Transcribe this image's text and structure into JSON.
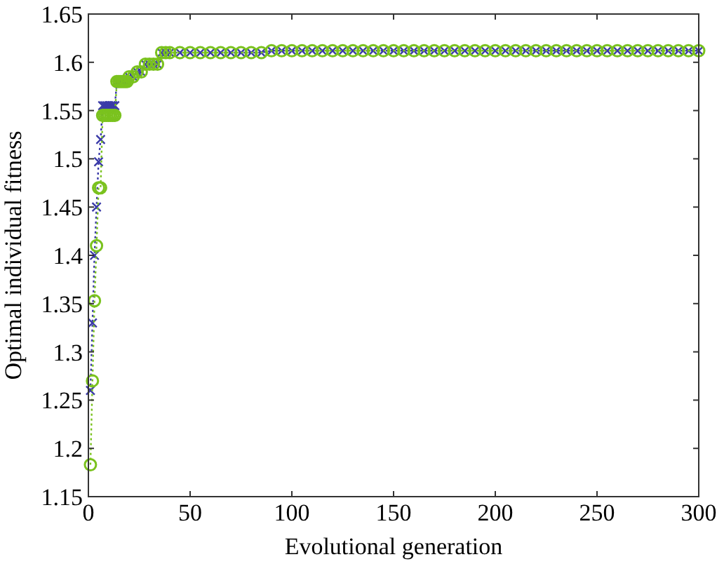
{
  "chart_data": {
    "type": "line",
    "xlabel": "Evolutional generation",
    "ylabel": "Optimal individual fitness",
    "xlim": [
      0,
      300
    ],
    "ylim": [
      1.15,
      1.65
    ],
    "xticks": [
      0,
      50,
      100,
      150,
      200,
      250,
      300
    ],
    "yticks": [
      1.15,
      1.2,
      1.25,
      1.3,
      1.35,
      1.4,
      1.45,
      1.5,
      1.55,
      1.6,
      1.65
    ],
    "grid": false,
    "line_style": "dotted",
    "x": [
      1,
      2,
      3,
      4,
      5,
      6,
      7,
      8,
      9,
      10,
      11,
      12,
      13,
      14,
      15,
      16,
      17,
      18,
      19,
      20,
      22,
      24,
      26,
      28,
      30,
      32,
      34,
      36,
      38,
      40,
      45,
      50,
      55,
      60,
      65,
      70,
      75,
      80,
      85,
      90,
      95,
      100,
      105,
      110,
      115,
      120,
      125,
      130,
      135,
      140,
      145,
      150,
      155,
      160,
      165,
      170,
      175,
      180,
      185,
      190,
      195,
      200,
      205,
      210,
      215,
      220,
      225,
      230,
      235,
      240,
      245,
      250,
      255,
      260,
      265,
      270,
      275,
      280,
      285,
      290,
      295,
      300
    ],
    "series": [
      {
        "color": "#3a3aa8",
        "marker": "cross",
        "values": [
          1.26,
          1.33,
          1.4,
          1.45,
          1.497,
          1.52,
          1.555,
          1.555,
          1.555,
          1.555,
          1.555,
          1.555,
          1.555,
          1.58,
          1.58,
          1.58,
          1.58,
          1.58,
          1.58,
          1.585,
          1.585,
          1.59,
          1.59,
          1.598,
          1.598,
          1.598,
          1.598,
          1.61,
          1.61,
          1.61,
          1.61,
          1.61,
          1.61,
          1.61,
          1.61,
          1.61,
          1.61,
          1.61,
          1.61,
          1.612,
          1.612,
          1.612,
          1.612,
          1.612,
          1.612,
          1.612,
          1.612,
          1.612,
          1.612,
          1.612,
          1.612,
          1.612,
          1.612,
          1.612,
          1.612,
          1.612,
          1.612,
          1.612,
          1.612,
          1.612,
          1.612,
          1.612,
          1.612,
          1.612,
          1.612,
          1.612,
          1.612,
          1.612,
          1.612,
          1.612,
          1.612,
          1.612,
          1.612,
          1.612,
          1.612,
          1.612,
          1.612,
          1.612,
          1.612,
          1.612,
          1.612,
          1.612
        ]
      },
      {
        "color": "#7ac21e",
        "marker": "circle",
        "values": [
          1.183,
          1.27,
          1.353,
          1.41,
          1.47,
          1.47,
          1.545,
          1.545,
          1.545,
          1.545,
          1.545,
          1.545,
          1.545,
          1.58,
          1.58,
          1.58,
          1.58,
          1.58,
          1.58,
          1.585,
          1.585,
          1.59,
          1.59,
          1.598,
          1.598,
          1.598,
          1.598,
          1.61,
          1.61,
          1.61,
          1.61,
          1.61,
          1.61,
          1.61,
          1.61,
          1.61,
          1.61,
          1.61,
          1.61,
          1.612,
          1.612,
          1.612,
          1.612,
          1.612,
          1.612,
          1.612,
          1.612,
          1.612,
          1.612,
          1.612,
          1.612,
          1.612,
          1.612,
          1.612,
          1.612,
          1.612,
          1.612,
          1.612,
          1.612,
          1.612,
          1.612,
          1.612,
          1.612,
          1.612,
          1.612,
          1.612,
          1.612,
          1.612,
          1.612,
          1.612,
          1.612,
          1.612,
          1.612,
          1.612,
          1.612,
          1.612,
          1.612,
          1.612,
          1.612,
          1.612,
          1.612,
          1.612
        ]
      }
    ]
  }
}
